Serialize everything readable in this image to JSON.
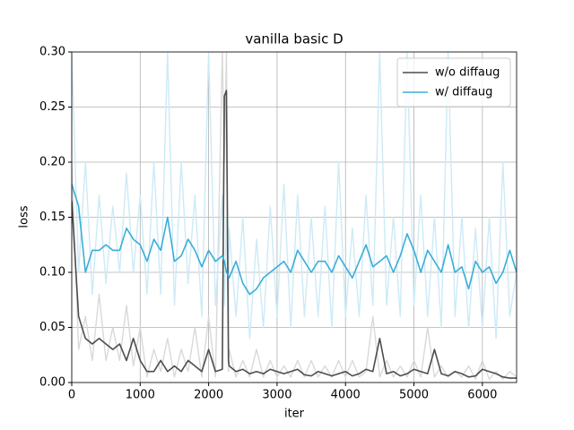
{
  "chart_data": {
    "type": "line",
    "title": "vanilla basic D",
    "xlabel": "iter",
    "ylabel": "loss",
    "x": [
      0,
      100,
      200,
      300,
      400,
      500,
      600,
      700,
      800,
      900,
      1000,
      1100,
      1200,
      1300,
      1400,
      1500,
      1600,
      1700,
      1800,
      1900,
      2000,
      2100,
      2200,
      2230,
      2260,
      2290,
      2300,
      2400,
      2500,
      2600,
      2700,
      2800,
      2900,
      3000,
      3100,
      3200,
      3300,
      3400,
      3500,
      3600,
      3700,
      3800,
      3900,
      4000,
      4100,
      4200,
      4300,
      4400,
      4500,
      4600,
      4700,
      4800,
      4900,
      5000,
      5100,
      5200,
      5300,
      5400,
      5500,
      5600,
      5700,
      5800,
      5900,
      6000,
      6100,
      6200,
      6300,
      6400,
      6500
    ],
    "series": [
      {
        "color": "#d9d9d9",
        "values": [
          0.2,
          0.03,
          0.06,
          0.02,
          0.08,
          0.02,
          0.05,
          0.02,
          0.07,
          0.015,
          0.05,
          0.005,
          0.03,
          0.01,
          0.04,
          0.005,
          0.03,
          0.01,
          0.05,
          0.005,
          0.06,
          0.005,
          0.3,
          0.2,
          0.3,
          0.01,
          0.03,
          0.005,
          0.02,
          0.005,
          0.03,
          0.005,
          0.02,
          0.005,
          0.015,
          0.005,
          0.02,
          0.005,
          0.02,
          0.005,
          0.015,
          0.005,
          0.02,
          0.005,
          0.02,
          0.005,
          0.01,
          0.06,
          0.005,
          0.02,
          0.005,
          0.015,
          0.005,
          0.02,
          0.005,
          0.05,
          0.005,
          0.015,
          0.005,
          0.01,
          0.005,
          0.015,
          0.003,
          0.02,
          0.003,
          0.01,
          0.003,
          0.01,
          0.005
        ]
      },
      {
        "color": "#cdeaf6",
        "values": [
          0.3,
          0.1,
          0.2,
          0.08,
          0.17,
          0.09,
          0.16,
          0.1,
          0.19,
          0.1,
          0.17,
          0.08,
          0.2,
          0.08,
          0.3,
          0.07,
          0.2,
          0.09,
          0.17,
          0.06,
          0.3,
          0.07,
          0.17,
          0.07,
          0.15,
          0.05,
          0.14,
          0.06,
          0.15,
          0.04,
          0.13,
          0.05,
          0.16,
          0.06,
          0.18,
          0.05,
          0.17,
          0.06,
          0.15,
          0.06,
          0.16,
          0.05,
          0.2,
          0.06,
          0.14,
          0.06,
          0.17,
          0.07,
          0.3,
          0.07,
          0.15,
          0.06,
          0.3,
          0.07,
          0.17,
          0.06,
          0.15,
          0.05,
          0.3,
          0.06,
          0.15,
          0.05,
          0.14,
          0.05,
          0.15,
          0.04,
          0.2,
          0.06,
          0.1
        ]
      },
      {
        "name": "w/o diffaug",
        "color": "#4d4d4d",
        "values": [
          0.165,
          0.06,
          0.04,
          0.035,
          0.04,
          0.035,
          0.03,
          0.035,
          0.02,
          0.04,
          0.02,
          0.01,
          0.01,
          0.02,
          0.01,
          0.015,
          0.01,
          0.02,
          0.015,
          0.01,
          0.03,
          0.01,
          0.012,
          0.26,
          0.265,
          0.02,
          0.015,
          0.01,
          0.012,
          0.008,
          0.01,
          0.008,
          0.012,
          0.01,
          0.008,
          0.01,
          0.012,
          0.007,
          0.006,
          0.01,
          0.008,
          0.006,
          0.008,
          0.01,
          0.006,
          0.008,
          0.012,
          0.01,
          0.04,
          0.008,
          0.01,
          0.006,
          0.008,
          0.012,
          0.01,
          0.008,
          0.03,
          0.008,
          0.006,
          0.01,
          0.008,
          0.005,
          0.006,
          0.012,
          0.01,
          0.008,
          0.005,
          0.004,
          0.004
        ]
      },
      {
        "name": "w/ diffaug",
        "color": "#3aaed8",
        "values": [
          0.18,
          0.16,
          0.1,
          0.12,
          0.12,
          0.125,
          0.12,
          0.12,
          0.14,
          0.13,
          0.125,
          0.11,
          0.13,
          0.12,
          0.15,
          0.11,
          0.115,
          0.13,
          0.12,
          0.105,
          0.12,
          0.11,
          0.115,
          0.11,
          0.1,
          0.097,
          0.095,
          0.11,
          0.09,
          0.08,
          0.085,
          0.095,
          0.1,
          0.105,
          0.11,
          0.1,
          0.12,
          0.11,
          0.1,
          0.11,
          0.11,
          0.1,
          0.115,
          0.105,
          0.095,
          0.11,
          0.125,
          0.105,
          0.11,
          0.115,
          0.1,
          0.115,
          0.135,
          0.12,
          0.1,
          0.12,
          0.11,
          0.1,
          0.125,
          0.1,
          0.105,
          0.085,
          0.11,
          0.1,
          0.105,
          0.09,
          0.1,
          0.12,
          0.1
        ]
      }
    ],
    "xlim": [
      0,
      6500
    ],
    "xticks": [
      0,
      1000,
      2000,
      3000,
      4000,
      5000,
      6000
    ],
    "ylim": [
      0,
      0.3
    ],
    "yticks": [
      {
        "value": 0,
        "label": "0.00"
      },
      {
        "value": 0.05,
        "label": "0.05"
      },
      {
        "value": 0.1,
        "label": "0.10"
      },
      {
        "value": 0.15,
        "label": "0.15"
      },
      {
        "value": 0.2,
        "label": "0.20"
      },
      {
        "value": 0.25,
        "label": "0.25"
      },
      {
        "value": 0.3,
        "label": "0.30"
      }
    ],
    "grid": true,
    "legend": "upper right"
  }
}
